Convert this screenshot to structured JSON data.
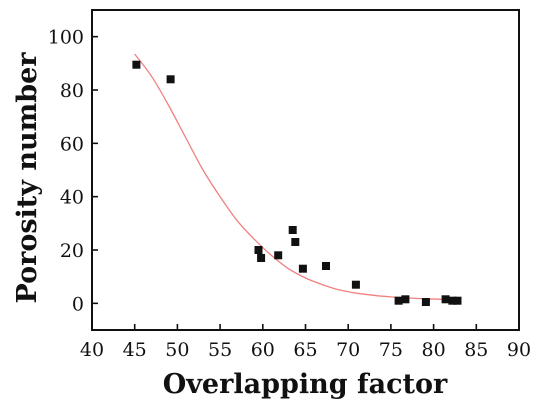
{
  "chart_data": {
    "type": "scatter",
    "title": "",
    "xlabel": "Overlapping factor",
    "ylabel": "Porosity number",
    "xlim": [
      40,
      90
    ],
    "ylim": [
      -10,
      110
    ],
    "x_ticks": [
      40,
      45,
      50,
      55,
      60,
      65,
      70,
      75,
      80,
      85,
      90
    ],
    "y_ticks": [
      0,
      20,
      40,
      60,
      80,
      100
    ],
    "grid": false,
    "legend": "none",
    "marker_color": "#111111",
    "fit_color": "#f08080",
    "series": [
      {
        "points": [
          {
            "x": 45.2,
            "y": 89.5
          },
          {
            "x": 49.2,
            "y": 84
          },
          {
            "x": 59.5,
            "y": 20
          },
          {
            "x": 59.8,
            "y": 17
          },
          {
            "x": 61.8,
            "y": 18
          },
          {
            "x": 63.5,
            "y": 27.5
          },
          {
            "x": 63.8,
            "y": 23
          },
          {
            "x": 64.7,
            "y": 13
          },
          {
            "x": 67.4,
            "y": 14
          },
          {
            "x": 70.9,
            "y": 7
          },
          {
            "x": 75.9,
            "y": 1
          },
          {
            "x": 76.7,
            "y": 1.5
          },
          {
            "x": 79.1,
            "y": 0.5
          },
          {
            "x": 81.4,
            "y": 1.5
          },
          {
            "x": 82.2,
            "y": 1
          },
          {
            "x": 82.8,
            "y": 1
          }
        ]
      }
    ],
    "fit_curve": {
      "x": [
        45,
        47,
        49,
        51,
        53,
        55,
        57,
        59,
        61,
        63,
        65,
        67,
        69,
        71,
        73,
        75,
        77,
        79,
        81,
        83
      ],
      "y": [
        93.5,
        85,
        74,
        62,
        50,
        40,
        31,
        24,
        18,
        13,
        9.5,
        7,
        5,
        3.8,
        3,
        2.4,
        2,
        1.7,
        1.5,
        1.4
      ]
    }
  }
}
